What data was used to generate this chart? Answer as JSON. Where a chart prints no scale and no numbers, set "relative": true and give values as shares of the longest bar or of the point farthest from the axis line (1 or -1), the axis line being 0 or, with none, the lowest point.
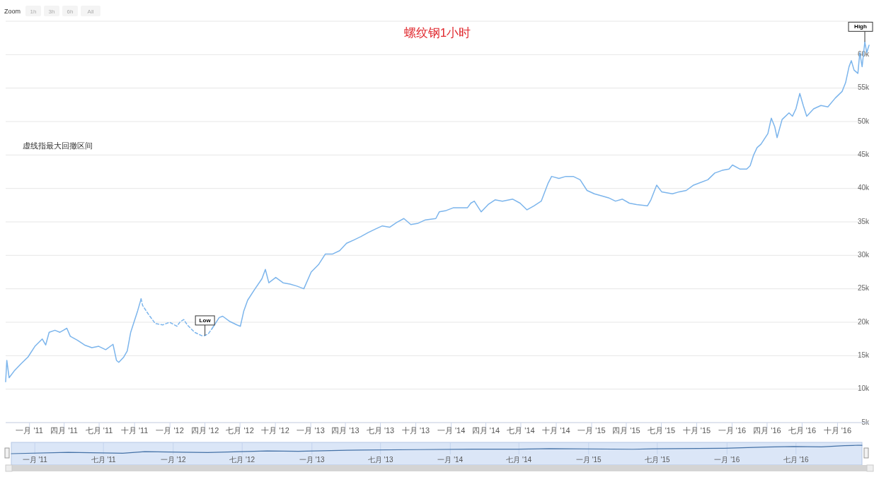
{
  "chart_data": [
    {
      "type": "line",
      "title": "螺纹钢1小时",
      "annotations": [
        "虚线指最大回撤区间",
        {
          "text": "Low",
          "x": "2012-04-01",
          "y": 18000
        },
        {
          "text": "High",
          "x": "2016-12-11",
          "y": 61900
        },
        "Zoom",
        "1h",
        "3h",
        "6h",
        "All"
      ],
      "xlim": [
        "2010-10-31",
        "2016-12-22"
      ],
      "xticks": [
        {
          "value": "2011-01-01",
          "label": "一月 '11"
        },
        {
          "value": "2011-04-01",
          "label": "四月 '11"
        },
        {
          "value": "2011-07-01",
          "label": "七月 '11"
        },
        {
          "value": "2011-10-01",
          "label": "十月 '11"
        },
        {
          "value": "2012-01-01",
          "label": "一月 '12"
        },
        {
          "value": "2012-04-01",
          "label": "四月 '12"
        },
        {
          "value": "2012-07-01",
          "label": "七月 '12"
        },
        {
          "value": "2012-10-01",
          "label": "十月 '12"
        },
        {
          "value": "2013-01-01",
          "label": "一月 '13"
        },
        {
          "value": "2013-04-01",
          "label": "四月 '13"
        },
        {
          "value": "2013-07-01",
          "label": "七月 '13"
        },
        {
          "value": "2013-10-01",
          "label": "十月 '13"
        },
        {
          "value": "2014-01-01",
          "label": "一月 '14"
        },
        {
          "value": "2014-04-01",
          "label": "四月 '14"
        },
        {
          "value": "2014-07-01",
          "label": "七月 '14"
        },
        {
          "value": "2014-10-01",
          "label": "十月 '14"
        },
        {
          "value": "2015-01-01",
          "label": "一月 '15"
        },
        {
          "value": "2015-04-01",
          "label": "四月 '15"
        },
        {
          "value": "2015-07-01",
          "label": "七月 '15"
        },
        {
          "value": "2015-10-01",
          "label": "十月 '15"
        },
        {
          "value": "2016-01-01",
          "label": "一月 '16"
        },
        {
          "value": "2016-04-01",
          "label": "四月 '16"
        },
        {
          "value": "2016-07-01",
          "label": "七月 '16"
        },
        {
          "value": "2016-10-01",
          "label": "十月 '16"
        }
      ],
      "ylim": [
        5000,
        65000
      ],
      "yticks": [
        {
          "value": 5000,
          "label": "5k"
        },
        {
          "value": 10000,
          "label": "10k"
        },
        {
          "value": 15000,
          "label": "15k"
        },
        {
          "value": 20000,
          "label": "20k"
        },
        {
          "value": 25000,
          "label": "25k"
        },
        {
          "value": 30000,
          "label": "30k"
        },
        {
          "value": 35000,
          "label": "35k"
        },
        {
          "value": 40000,
          "label": "40k"
        },
        {
          "value": 45000,
          "label": "45k"
        },
        {
          "value": 50000,
          "label": "50k"
        },
        {
          "value": 55000,
          "label": "55k"
        },
        {
          "value": 60000,
          "label": "60k"
        },
        {
          "value": 65000,
          "label": null
        }
      ],
      "grid": "y",
      "series": [
        {
          "color": "#7cb5ec",
          "line_style": "solid",
          "x": [
            "2010-10-31",
            "2010-11-03",
            "2010-11-09",
            "2010-11-22",
            "2010-12-10",
            "2010-12-28",
            "2011-01-15",
            "2011-02-03",
            "2011-02-12",
            "2011-02-21",
            "2011-03-08",
            "2011-03-21",
            "2011-03-30",
            "2011-04-08",
            "2011-04-17",
            "2011-05-06",
            "2011-05-24",
            "2011-06-12",
            "2011-06-30",
            "2011-07-18",
            "2011-08-06",
            "2011-08-15",
            "2011-08-21",
            "2011-09-03",
            "2011-09-12",
            "2011-09-21",
            "2011-09-30",
            "2011-10-09",
            "2011-10-18"
          ],
          "values": [
            11100,
            14300,
            11700,
            12700,
            13800,
            14800,
            16400,
            17500,
            16600,
            18500,
            18800,
            18500,
            18800,
            19100,
            17900,
            17300,
            16600,
            16200,
            16400,
            15900,
            16700,
            14300,
            14000,
            14800,
            15700,
            18500,
            20100,
            21700,
            23500
          ]
        },
        {
          "color": "#7cb5ec",
          "line_style": "dashed",
          "x": [
            "2011-10-18",
            "2011-10-22",
            "2011-11-06",
            "2011-11-24",
            "2011-12-13",
            "2011-12-31",
            "2012-01-19",
            "2012-01-28",
            "2012-02-06",
            "2012-02-15",
            "2012-03-05",
            "2012-03-23",
            "2012-04-01",
            "2012-04-10",
            "2012-04-20"
          ],
          "values": [
            23500,
            22500,
            21200,
            19800,
            19600,
            20000,
            19400,
            20100,
            20400,
            19600,
            18500,
            18000,
            18000,
            18300,
            19100
          ]
        },
        {
          "color": "#7cb5ec",
          "line_style": "solid",
          "x": [
            "2012-04-20",
            "2012-05-08",
            "2012-05-17",
            "2012-06-05",
            "2012-06-23",
            "2012-07-02",
            "2012-07-11",
            "2012-07-21",
            "2012-08-08",
            "2012-08-27",
            "2012-09-05",
            "2012-09-14",
            "2012-10-02",
            "2012-10-21",
            "2012-11-08",
            "2012-11-26",
            "2012-12-14",
            "2013-01-02",
            "2013-01-21",
            "2013-02-08",
            "2013-02-27",
            "2013-03-17",
            "2013-04-04",
            "2013-04-23",
            "2013-05-11",
            "2013-05-30",
            "2013-06-17",
            "2013-07-06",
            "2013-07-25",
            "2013-08-12",
            "2013-08-31",
            "2013-09-18",
            "2013-10-07",
            "2013-10-26",
            "2013-11-22",
            "2013-12-01",
            "2013-12-19",
            "2014-01-06",
            "2014-02-12",
            "2014-02-21",
            "2014-03-02",
            "2014-03-20",
            "2014-04-07",
            "2014-04-25",
            "2014-05-14",
            "2014-06-10",
            "2014-06-29",
            "2014-07-17",
            "2014-08-04",
            "2014-08-23",
            "2014-09-10",
            "2014-09-19",
            "2014-10-08",
            "2014-10-26",
            "2014-11-14",
            "2014-12-02",
            "2014-12-20",
            "2015-01-08",
            "2015-01-26",
            "2015-02-14",
            "2015-03-04",
            "2015-03-22",
            "2015-04-09",
            "2015-04-28",
            "2015-05-26",
            "2015-06-04",
            "2015-06-19",
            "2015-07-02",
            "2015-07-30",
            "2015-08-17",
            "2015-09-04",
            "2015-09-23",
            "2015-10-30",
            "2015-11-17",
            "2015-12-06",
            "2015-12-24",
            "2016-01-02",
            "2016-01-21",
            "2016-02-08",
            "2016-02-17",
            "2016-02-26",
            "2016-03-06",
            "2016-03-16",
            "2016-04-03",
            "2016-04-12",
            "2016-04-21",
            "2016-04-27",
            "2016-05-10",
            "2016-05-28",
            "2016-06-06",
            "2016-06-15",
            "2016-06-25",
            "2016-07-04",
            "2016-07-13",
            "2016-07-31",
            "2016-08-19",
            "2016-09-06",
            "2016-09-25",
            "2016-10-13",
            "2016-10-22",
            "2016-10-31",
            "2016-11-06",
            "2016-11-13",
            "2016-11-23",
            "2016-11-28",
            "2016-12-04",
            "2016-12-07",
            "2016-12-11",
            "2016-12-16",
            "2016-12-22"
          ],
          "values": [
            19100,
            20700,
            20900,
            20100,
            19600,
            19400,
            21700,
            23300,
            24900,
            26500,
            27900,
            25900,
            26700,
            25900,
            25700,
            25400,
            25000,
            27500,
            28600,
            30200,
            30200,
            30700,
            31800,
            32300,
            32800,
            33400,
            33900,
            34400,
            34200,
            34900,
            35500,
            34600,
            34800,
            35300,
            35500,
            36500,
            36700,
            37100,
            37100,
            37800,
            38100,
            36500,
            37600,
            38300,
            38100,
            38400,
            37800,
            36800,
            37400,
            38100,
            40800,
            41800,
            41500,
            41800,
            41800,
            41300,
            39700,
            39200,
            38900,
            38600,
            38100,
            38400,
            37800,
            37600,
            37400,
            38300,
            40500,
            39500,
            39200,
            39500,
            39700,
            40500,
            41300,
            42300,
            42700,
            42900,
            43500,
            42900,
            42900,
            43400,
            45000,
            46100,
            46600,
            48200,
            50500,
            49200,
            47600,
            50300,
            51300,
            50800,
            51900,
            54200,
            52400,
            50800,
            51900,
            52400,
            52200,
            53500,
            54500,
            55800,
            58200,
            59100,
            57700,
            57200,
            60300,
            58200,
            59800,
            61900,
            60300,
            61400
          ]
        }
      ]
    },
    {
      "type": "line",
      "relative": true,
      "grid": "x",
      "xlim": [
        "2010-10-31",
        "2016-12-22"
      ],
      "xticks": [
        {
          "value": "2011-01-01",
          "label": "一月 '11"
        },
        {
          "value": "2011-07-01",
          "label": "七月 '11"
        },
        {
          "value": "2012-01-01",
          "label": "一月 '12"
        },
        {
          "value": "2012-07-01",
          "label": "七月 '12"
        },
        {
          "value": "2013-01-01",
          "label": "一月 '13"
        },
        {
          "value": "2013-07-01",
          "label": "七月 '13"
        },
        {
          "value": "2014-01-01",
          "label": "一月 '14"
        },
        {
          "value": "2014-07-01",
          "label": "七月 '14"
        },
        {
          "value": "2015-01-01",
          "label": "一月 '15"
        },
        {
          "value": "2015-07-01",
          "label": "七月 '15"
        },
        {
          "value": "2016-01-01",
          "label": "一月 '16"
        },
        {
          "value": "2016-07-01",
          "label": "七月 '16"
        }
      ],
      "series": [
        {
          "color": "#4572a7",
          "line_style": "solid",
          "x": [
            "2010-10-31",
            "2011-03-30",
            "2011-08-21",
            "2011-10-18",
            "2012-04-01",
            "2012-09-05",
            "2012-11-26",
            "2013-04-04",
            "2013-10-07",
            "2014-03-02",
            "2014-06-29",
            "2014-09-19",
            "2015-04-28",
            "2015-06-19",
            "2015-12-24",
            "2016-04-12",
            "2016-06-25",
            "2016-09-06",
            "2016-11-06",
            "2016-11-28",
            "2016-12-11",
            "2016-12-22"
          ],
          "values": [
            0,
            0.15,
            0.06,
            0.24,
            0.14,
            0.33,
            0.28,
            0.41,
            0.48,
            0.53,
            0.53,
            0.6,
            0.52,
            0.58,
            0.64,
            0.78,
            0.85,
            0.81,
            0.94,
            0.97,
            1,
            0.99
          ]
        }
      ]
    }
  ]
}
